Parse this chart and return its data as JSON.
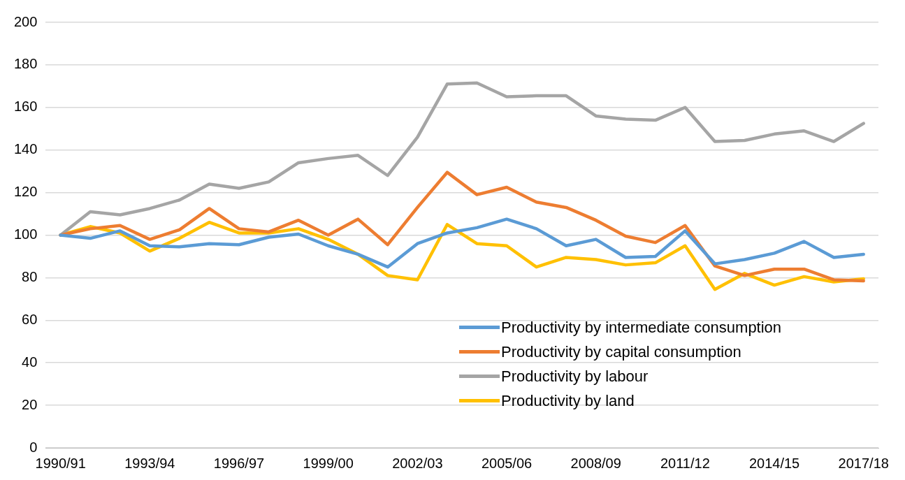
{
  "chart_data": {
    "type": "line",
    "categories": [
      "1990/91",
      null,
      null,
      "1993/94",
      null,
      null,
      "1996/97",
      null,
      null,
      "1999/00",
      null,
      null,
      "2002/03",
      null,
      null,
      "2005/06",
      null,
      null,
      "2008/09",
      null,
      null,
      "2011/12",
      null,
      null,
      "2014/15",
      null,
      null,
      "2017/18"
    ],
    "series": [
      {
        "name": "Productivity by intermediate consumption",
        "color": "#5b9bd5",
        "values": [
          100,
          98.5,
          102,
          95,
          94.5,
          96,
          95.5,
          99,
          100.5,
          95,
          91,
          85,
          96,
          101,
          103.5,
          107.5,
          103,
          95,
          98,
          89.5,
          90,
          102,
          86.5,
          88.5,
          91.5,
          97,
          89.5,
          91
        ]
      },
      {
        "name": "Productivity by capital consumption",
        "color": "#ed7d31",
        "values": [
          100,
          103,
          104.5,
          98,
          102.5,
          112.5,
          103,
          101.5,
          107,
          100,
          107.5,
          95.5,
          113,
          129.5,
          119,
          122.5,
          115.5,
          113,
          107,
          99.5,
          96.5,
          104.5,
          85.5,
          81,
          84,
          84,
          79,
          78.5
        ]
      },
      {
        "name": "Productivity by labour",
        "color": "#a5a5a5",
        "values": [
          100,
          111,
          109.5,
          112.5,
          116.5,
          124,
          122,
          125,
          134,
          136,
          137.5,
          128,
          146,
          171,
          171.5,
          165,
          165.5,
          165.5,
          156,
          154.5,
          154,
          160,
          144,
          144.5,
          147.5,
          149,
          144,
          152.5
        ]
      },
      {
        "name": "Productivity by land",
        "color": "#ffc000",
        "values": [
          100,
          104,
          101,
          92.5,
          98.5,
          106,
          101,
          101,
          103,
          98,
          91,
          81,
          79,
          105,
          96,
          95,
          85,
          89.5,
          88.5,
          86,
          87,
          95,
          74.5,
          82,
          76.5,
          80.5,
          78,
          79.5
        ]
      }
    ],
    "ylim": [
      0,
      200
    ],
    "yticks": [
      0,
      20,
      40,
      60,
      80,
      100,
      120,
      140,
      160,
      180,
      200
    ],
    "grid": "y",
    "legend": "bottom right",
    "marker": "none",
    "line_style": "solid"
  }
}
